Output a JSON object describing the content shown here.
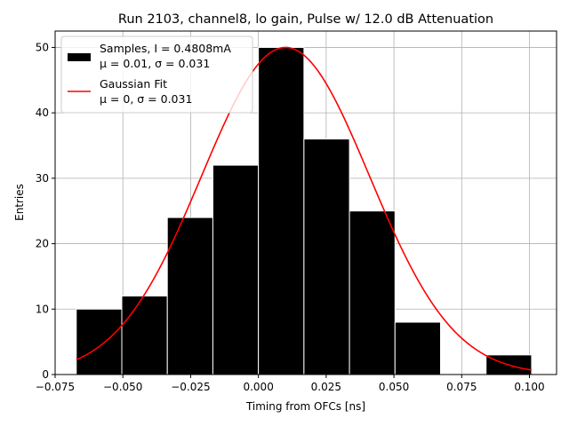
{
  "chart_data": {
    "type": "bar",
    "title": "Run 2103, channel8, lo gain, Pulse w/ 12.0 dB Attenuation",
    "xlabel": "Timing from OFCs [ns]",
    "ylabel": "Entries",
    "xlim": [
      -0.075,
      0.11
    ],
    "ylim": [
      0,
      52.5
    ],
    "xticks": [
      -0.075,
      -0.05,
      -0.025,
      0.0,
      0.025,
      0.05,
      0.075,
      0.1
    ],
    "xtick_labels": [
      "−0.075",
      "−0.050",
      "−0.025",
      "0.000",
      "0.025",
      "0.050",
      "0.075",
      "0.100"
    ],
    "yticks": [
      0,
      10,
      20,
      30,
      40,
      50
    ],
    "ytick_labels": [
      "0",
      "10",
      "20",
      "30",
      "40",
      "50"
    ],
    "grid": true,
    "legend_position": "top-left",
    "bin_edges": [
      -0.0672,
      -0.0504,
      -0.0336,
      -0.0168,
      0.0,
      0.0168,
      0.0336,
      0.0504,
      0.0672,
      0.084,
      0.1008
    ],
    "series": [
      {
        "name": "Samples, I = 0.4808mA",
        "name_line2": "μ = 0.01, σ = 0.031",
        "kind": "histogram",
        "color": "#000000",
        "edgecolor": "#ffffff",
        "values": [
          10,
          12,
          24,
          32,
          50,
          36,
          25,
          8,
          0,
          3
        ]
      },
      {
        "name": "Gaussian Fit",
        "name_line2": "μ = 0, σ = 0.031",
        "kind": "line",
        "color": "#ff0000",
        "amplitude": 50,
        "mean": 0.01,
        "sigma": 0.031,
        "x_range": [
          -0.0672,
          0.1008
        ]
      }
    ]
  }
}
